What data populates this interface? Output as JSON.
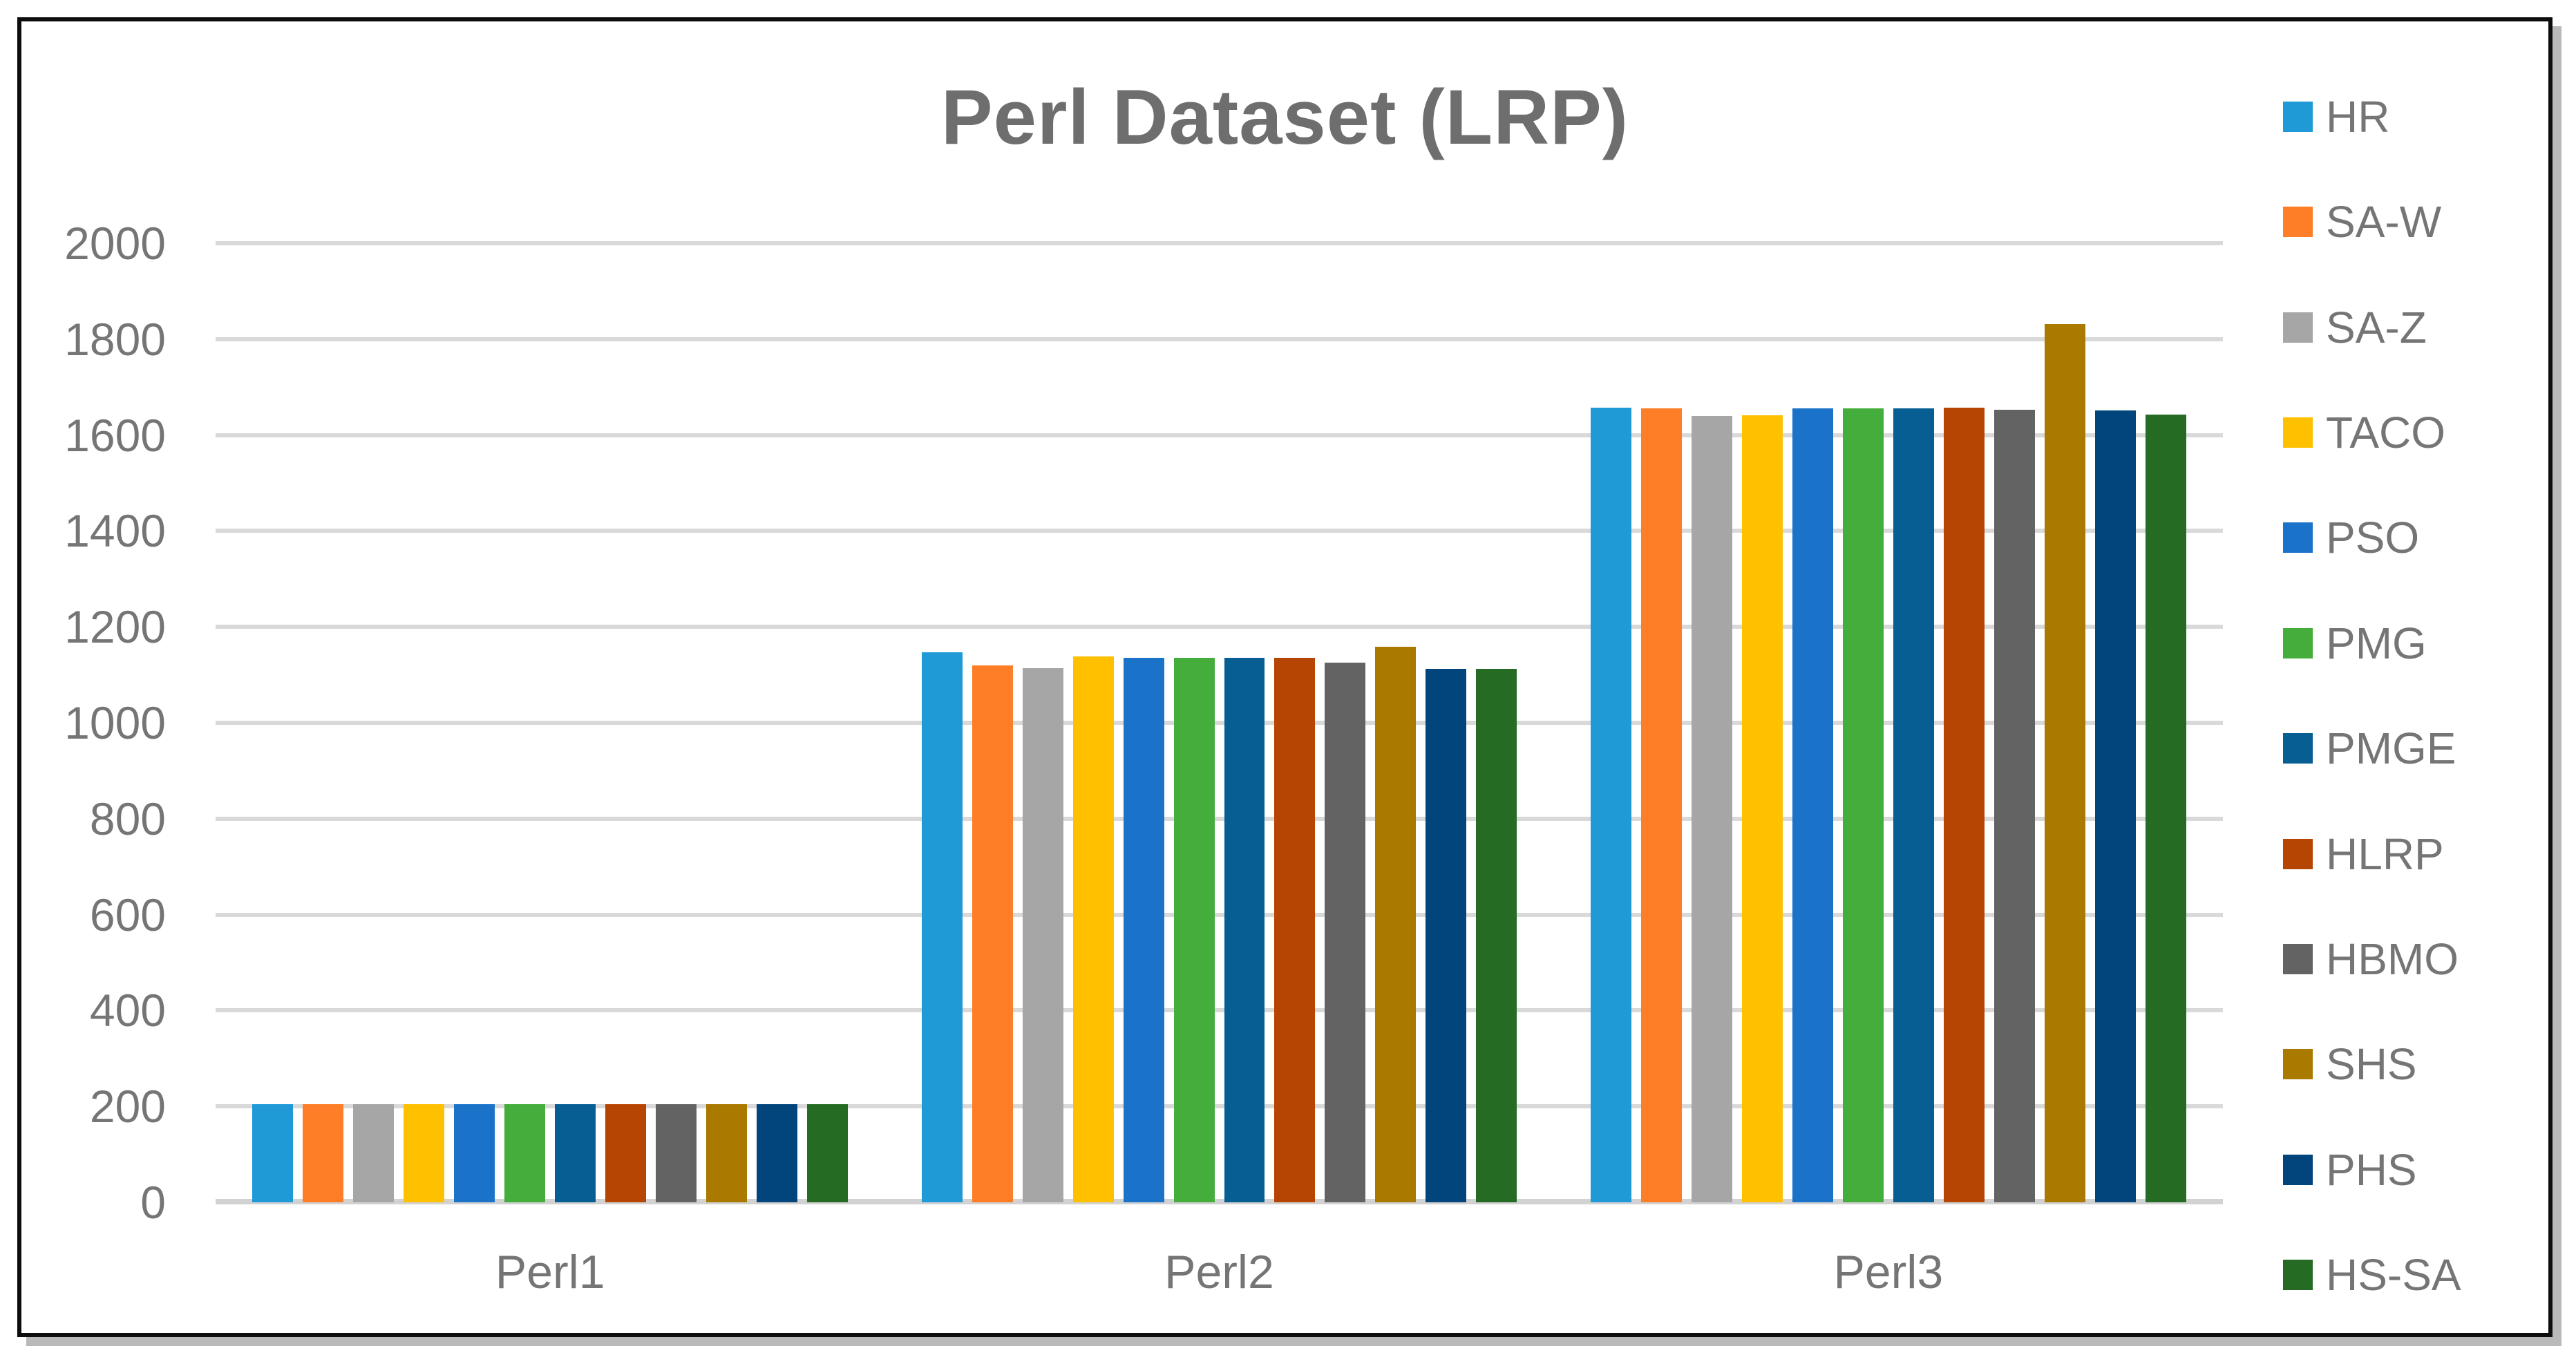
{
  "chart_data": {
    "type": "bar",
    "title": "Perl Dataset (LRP)",
    "xlabel": "",
    "ylabel": "",
    "categories": [
      "Perl1",
      "Perl2",
      "Perl3"
    ],
    "series": [
      {
        "name": "HR",
        "color": "#1F9AD7",
        "values": [
          204,
          1147,
          1657
        ]
      },
      {
        "name": "SA-W",
        "color": "#FD7E26",
        "values": [
          204,
          1120,
          1655
        ]
      },
      {
        "name": "SA-Z",
        "color": "#A6A6A6",
        "values": [
          204,
          1114,
          1640
        ]
      },
      {
        "name": "TACO",
        "color": "#FFC000",
        "values": [
          204,
          1139,
          1641
        ]
      },
      {
        "name": "PSO",
        "color": "#1B73C9",
        "values": [
          204,
          1135,
          1656
        ]
      },
      {
        "name": "PMG",
        "color": "#45AD3B",
        "values": [
          204,
          1135,
          1655
        ]
      },
      {
        "name": "PMGE",
        "color": "#065E93",
        "values": [
          204,
          1135,
          1655
        ]
      },
      {
        "name": "HLRP",
        "color": "#B64504",
        "values": [
          204,
          1136,
          1657
        ]
      },
      {
        "name": "HBMO",
        "color": "#636363",
        "values": [
          204,
          1126,
          1653
        ]
      },
      {
        "name": "SHS",
        "color": "#A97900",
        "values": [
          204,
          1159,
          1832
        ]
      },
      {
        "name": "PHS",
        "color": "#01457C",
        "values": [
          204,
          1112,
          1651
        ]
      },
      {
        "name": "HS-SA",
        "color": "#266B24",
        "values": [
          204,
          1112,
          1642
        ]
      }
    ],
    "ylim": [
      0,
      2000
    ],
    "yticks": [
      0,
      200,
      400,
      600,
      800,
      1000,
      1200,
      1400,
      1600,
      1800,
      2000
    ],
    "grid": true,
    "legend_position": "right",
    "style": {
      "grid_color": "#D9D9D9",
      "axis_text_color": "#757575",
      "title_color": "#6E6E6E",
      "frame_border_color": "#0D0D0D",
      "background_color": "#FFFFFF"
    }
  }
}
